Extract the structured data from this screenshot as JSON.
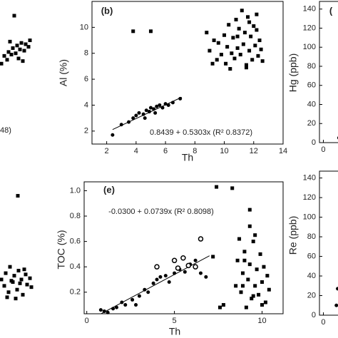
{
  "chart_data": [
    {
      "type": "scatter",
      "annotation": "48)",
      "xlim": [
        0,
        14
      ],
      "ylim": [
        1,
        12
      ],
      "series": [
        {
          "marker": "square",
          "color": "#000000",
          "x": [
            11.6,
            11.8,
            12.0,
            12.1,
            12.3,
            12.4,
            12.6,
            12.7,
            12.9,
            13.0,
            13.2,
            13.3,
            13.5,
            13.6,
            12.2,
            12.8,
            13.1,
            12.5
          ],
          "y": [
            7.2,
            7.8,
            7.5,
            8.1,
            7.9,
            8.4,
            8.0,
            8.6,
            8.3,
            8.8,
            8.2,
            8.7,
            8.5,
            9.0,
            8.9,
            7.6,
            7.4,
            10.9
          ]
        }
      ]
    },
    {
      "type": "scatter",
      "panel_label": "(b)",
      "x_label": "Th",
      "y_label": "Al (%)",
      "annotation": "0.8439 + 0.5303x (R² 0.8372)",
      "xlim": [
        1,
        14
      ],
      "ylim": [
        1,
        12
      ],
      "xticks": [
        2,
        4,
        6,
        8,
        10,
        12,
        14
      ],
      "yticks": [
        2,
        4,
        6,
        8,
        10
      ],
      "trendline": {
        "x": [
          2.4,
          7.1
        ],
        "y": [
          2.116,
          4.609
        ]
      },
      "series": [
        {
          "marker": "circle",
          "color": "#000000",
          "x": [
            2.4,
            3,
            3.5,
            3.8,
            4,
            4.2,
            4.5,
            4.7,
            4.9,
            5,
            5.2,
            5.4,
            5.6,
            5.8,
            6,
            6.2,
            6.5,
            7,
            4.6,
            5.3
          ],
          "y": [
            1.7,
            2.5,
            2.7,
            3,
            3.2,
            3.4,
            3.3,
            3.6,
            3.5,
            3.8,
            3.7,
            3.9,
            4,
            3.8,
            4.1,
            4,
            4.2,
            4.5,
            3.0,
            3.4
          ]
        },
        {
          "marker": "square",
          "color": "#000000",
          "x": [
            3.8,
            5,
            8.8,
            9,
            9.3,
            9.5,
            9.6,
            9.8,
            10,
            10.1,
            10.2,
            10.3,
            10.5,
            10.6,
            10.7,
            10.8,
            10.9,
            11,
            11.1,
            11.2,
            11.3,
            11.4,
            11.5,
            11.6,
            11.7,
            11.8,
            11.9,
            12,
            12.1,
            12.2,
            12.3,
            12.4,
            12.5,
            12.6,
            11.5,
            10.4,
            9.2,
            12.2,
            10.9,
            11.7
          ],
          "y": [
            9.7,
            9.7,
            9.6,
            8.2,
            9,
            7.5,
            8.8,
            7.9,
            9.4,
            7.2,
            8.5,
            10.2,
            8,
            9.2,
            7.6,
            10.6,
            8.4,
            9.9,
            7.9,
            11.3,
            8.7,
            9.6,
            7.1,
            10.8,
            8.2,
            9.3,
            7.5,
            10.1,
            8.6,
            11,
            7.8,
            9,
            8.3,
            7.4,
            6.9,
            6.8,
            7.2,
            9.8,
            9.3,
            10.4
          ]
        }
      ]
    },
    {
      "type": "scatter",
      "panel_label": "(",
      "y_label": "Hg (ppb)",
      "xlim": [
        -0.3,
        2
      ],
      "ylim": [
        0,
        148
      ],
      "xticks": [
        0
      ],
      "yticks": [
        0,
        20,
        40,
        60,
        80,
        100,
        120,
        140
      ],
      "series": [
        {
          "marker": "circle",
          "color": "#000000",
          "x": [
            1.2,
            1.6
          ],
          "y": [
            5,
            6
          ]
        }
      ]
    },
    {
      "type": "scatter",
      "xlim": [
        0,
        14
      ],
      "ylim": [
        0.03,
        1.07
      ],
      "series": [
        {
          "marker": "square",
          "color": "#000000",
          "x": [
            11.6,
            11.8,
            11.9,
            12.1,
            12.2,
            12.4,
            12.5,
            12.7,
            12.8,
            13.0,
            13.1,
            13.3,
            13.4,
            13.6,
            13.7,
            12.0,
            12.6,
            13.2,
            12.3,
            12.9,
            12.75
          ],
          "y": [
            0.3,
            0.25,
            0.35,
            0.2,
            0.4,
            0.28,
            0.33,
            0.22,
            0.37,
            0.3,
            0.18,
            0.34,
            0.26,
            0.31,
            0.24,
            0.16,
            0.15,
            0.38,
            0.29,
            0.27,
            0.96
          ]
        }
      ]
    },
    {
      "type": "scatter",
      "panel_label": "(e)",
      "x_label": "Th",
      "y_label": "TOC (%)",
      "annotation": "-0.0300 + 0.0739x (R² 0.8098)",
      "xlim": [
        -0.15,
        11.2
      ],
      "ylim": [
        0.03,
        1.07
      ],
      "xticks": [
        0,
        5,
        10
      ],
      "yticks": [
        0.2,
        0.4,
        0.6,
        0.8,
        {
          "value": 1.0,
          "label": "1.0"
        }
      ],
      "trendline": {
        "x": [
          0.8,
          7
        ],
        "y": [
          0.0291,
          0.4873
        ]
      },
      "series": [
        {
          "marker": "circle",
          "color": "#000000",
          "x": [
            0.8,
            1,
            1.2,
            1.5,
            2,
            2.2,
            2.6,
            3,
            3.3,
            3.5,
            3.8,
            4,
            4.2,
            4.5,
            4.7,
            5,
            5.3,
            5.6,
            5.9,
            6.2,
            6.5,
            6.8,
            2.8,
            1.7
          ],
          "y": [
            0.06,
            0.05,
            0.04,
            0.07,
            0.12,
            0.1,
            0.14,
            0.17,
            0.22,
            0.2,
            0.27,
            0.3,
            0.32,
            0.33,
            0.28,
            0.35,
            0.38,
            0.36,
            0.42,
            0.45,
            0.35,
            0.32,
            0.1,
            0.08
          ]
        },
        {
          "marker": "open-circle",
          "color": "#000000",
          "x": [
            4,
            5,
            5.2,
            5.5,
            5.8,
            6.2,
            6.5
          ],
          "y": [
            0.4,
            0.45,
            0.39,
            0.47,
            0.41,
            0.4,
            0.62
          ]
        },
        {
          "marker": "square",
          "color": "#000000",
          "x": [
            7.2,
            7.4,
            8.3,
            7.8,
            8.5,
            8.6,
            8.7,
            8.8,
            8.9,
            9,
            9.1,
            9.2,
            9.3,
            9.4,
            9.5,
            9.6,
            9.7,
            9.8,
            9.9,
            10,
            10.1,
            9.3,
            10.2,
            10.3,
            10.4,
            9,
            9.5,
            10,
            8.9,
            9.3,
            9.6,
            7.6
          ],
          "y": [
            0.48,
            1.03,
            1.02,
            0.1,
            0.25,
            0.45,
            0.62,
            0.2,
            0.35,
            0.52,
            0.08,
            0.3,
            0.42,
            0.15,
            0.6,
            0.25,
            0.38,
            0.18,
            0.5,
            0.28,
            0.4,
            0.72,
            0.12,
            0.33,
            0.22,
            0.45,
            0.17,
            0.1,
            0.25,
            0.85,
            0.65,
            0.08
          ]
        }
      ]
    },
    {
      "type": "scatter",
      "y_label": "Re (ppb)",
      "xlim": [
        -0.3,
        2
      ],
      "ylim": [
        0,
        147
      ],
      "xticks": [
        0
      ],
      "yticks": [
        0,
        20,
        40,
        60,
        80,
        100,
        120,
        140
      ],
      "series": [
        {
          "marker": "circle",
          "color": "#000000",
          "x": [
            1.1,
            1.0
          ],
          "y": [
            27,
            10
          ]
        }
      ]
    }
  ]
}
